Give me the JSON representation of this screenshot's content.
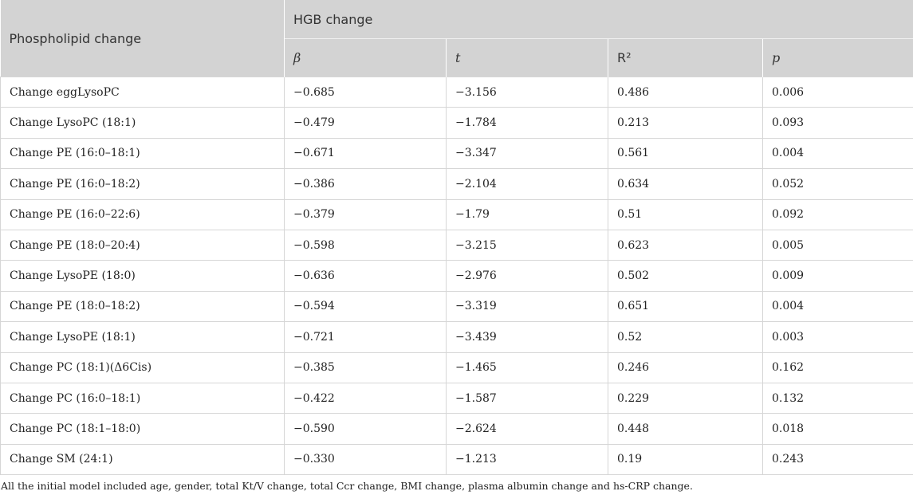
{
  "table": {
    "header": {
      "first_col": "Phospholipid change",
      "group": "HGB change",
      "cols": [
        "β",
        "t",
        "R²",
        "p"
      ]
    },
    "rows": [
      {
        "name": "Change eggLysoPC",
        "beta": "−0.685",
        "t": "−3.156",
        "r2": "0.486",
        "p": "0.006"
      },
      {
        "name": "Change LysoPC (18:1)",
        "beta": "−0.479",
        "t": "−1.784",
        "r2": "0.213",
        "p": "0.093"
      },
      {
        "name": "Change PE (16:0–18:1)",
        "beta": "−0.671",
        "t": "−3.347",
        "r2": "0.561",
        "p": "0.004"
      },
      {
        "name": "Change PE (16:0–18:2)",
        "beta": "−0.386",
        "t": "−2.104",
        "r2": "0.634",
        "p": "0.052"
      },
      {
        "name": "Change PE (16:0–22:6)",
        "beta": "−0.379",
        "t": "−1.79",
        "r2": "0.51",
        "p": "0.092"
      },
      {
        "name": "Change PE (18:0–20:4)",
        "beta": "−0.598",
        "t": "−3.215",
        "r2": "0.623",
        "p": "0.005"
      },
      {
        "name": "Change LysoPE (18:0)",
        "beta": "−0.636",
        "t": "−2.976",
        "r2": "0.502",
        "p": "0.009"
      },
      {
        "name": "Change PE (18:0–18:2)",
        "beta": "−0.594",
        "t": "−3.319",
        "r2": "0.651",
        "p": "0.004"
      },
      {
        "name": "Change LysoPE (18:1)",
        "beta": "−0.721",
        "t": "−3.439",
        "r2": "0.52",
        "p": "0.003"
      },
      {
        "name": "Change PC (18:1)(Δ6Cis)",
        "beta": "−0.385",
        "t": "−1.465",
        "r2": "0.246",
        "p": "0.162"
      },
      {
        "name": "Change PC (16:0–18:1)",
        "beta": "−0.422",
        "t": "−1.587",
        "r2": "0.229",
        "p": "0.132"
      },
      {
        "name": "Change PC (18:1–18:0)",
        "beta": "−0.590",
        "t": "−2.624",
        "r2": "0.448",
        "p": "0.018"
      },
      {
        "name": "Change SM (24:1)",
        "beta": "−0.330",
        "t": "−1.213",
        "r2": "0.19",
        "p": "0.243"
      }
    ]
  },
  "footnote": "All the initial model included age, gender, total Kt/V change, total Ccr change, BMI change, plasma albumin change and hs-CRP change."
}
